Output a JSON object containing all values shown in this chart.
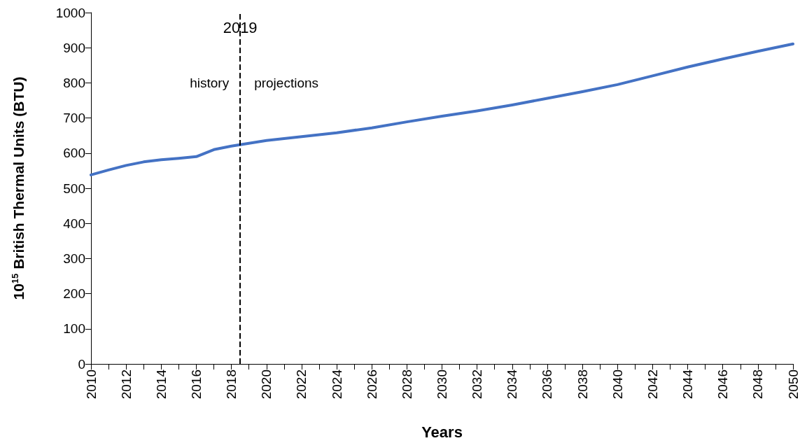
{
  "chart_data": {
    "type": "line",
    "xlabel": "Years",
    "ylabel": "10$^{15}$ British Thermal Units (BTU)",
    "x": [
      2010,
      2011,
      2012,
      2013,
      2014,
      2015,
      2016,
      2017,
      2018,
      2019,
      2020,
      2022,
      2024,
      2026,
      2028,
      2030,
      2032,
      2034,
      2036,
      2038,
      2040,
      2042,
      2044,
      2046,
      2048,
      2050
    ],
    "series": [
      {
        "color": "#4472c4",
        "values": [
          538,
          552,
          565,
          575,
          581,
          585,
          590,
          610,
          620,
          628,
          636,
          647,
          658,
          672,
          689,
          705,
          720,
          737,
          756,
          775,
          795,
          820,
          845,
          868,
          890,
          911
        ]
      }
    ],
    "xlim": [
      2010,
      2050
    ],
    "xticks": [
      2010,
      {
        "value": 2011,
        "label": null
      },
      2012,
      {
        "value": 2013,
        "label": null
      },
      2014,
      {
        "value": 2015,
        "label": null
      },
      2016,
      {
        "value": 2017,
        "label": null
      },
      2018,
      {
        "value": 2019,
        "label": null
      },
      2020,
      {
        "value": 2021,
        "label": null
      },
      2022,
      {
        "value": 2023,
        "label": null
      },
      2024,
      {
        "value": 2025,
        "label": null
      },
      2026,
      {
        "value": 2027,
        "label": null
      },
      2028,
      {
        "value": 2029,
        "label": null
      },
      2030,
      {
        "value": 2031,
        "label": null
      },
      2032,
      {
        "value": 2033,
        "label": null
      },
      2034,
      {
        "value": 2035,
        "label": null
      },
      2036,
      {
        "value": 2037,
        "label": null
      },
      2038,
      {
        "value": 2039,
        "label": null
      },
      2040,
      {
        "value": 2041,
        "label": null
      },
      2042,
      {
        "value": 2043,
        "label": null
      },
      2044,
      {
        "value": 2045,
        "label": null
      },
      2046,
      {
        "value": 2047,
        "label": null
      },
      2048,
      {
        "value": 2049,
        "label": null
      },
      2050
    ],
    "ylim": [
      0,
      1000
    ],
    "yticks": [
      0,
      100,
      200,
      300,
      400,
      500,
      600,
      700,
      800,
      900,
      1000
    ],
    "ref_lines": [
      {
        "axis": "x",
        "value": 2018.5,
        "label": "2019",
        "color": "#000000",
        "line_style": "dashed"
      }
    ],
    "annotations": [
      "history",
      "projections"
    ],
    "grid": false,
    "marker": "none",
    "line_style": "solid"
  }
}
